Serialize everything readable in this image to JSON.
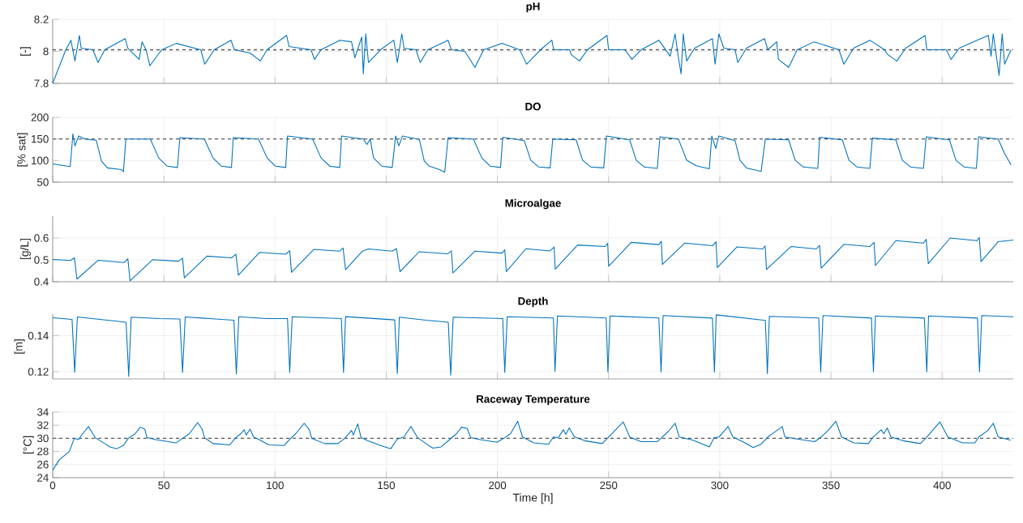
{
  "chart_data": [
    {
      "type": "line",
      "title": "pH",
      "ylabel": "[-]",
      "color": "#0072bd",
      "xlim": [
        0,
        432
      ],
      "xticks": [
        0,
        50,
        100,
        150,
        200,
        250,
        300,
        350,
        400
      ],
      "ylim": [
        7.8,
        8.2
      ],
      "yticks": [
        7.8,
        8,
        8.2
      ],
      "grid": true,
      "tick_labels": "y",
      "ref_lines": [
        {
          "axis": "y",
          "value": 8.01,
          "color": "#595959",
          "line_style": "dashed"
        }
      ],
      "x": [
        0,
        5.9,
        8.2,
        10,
        12,
        12.8,
        18.1,
        20.4,
        23.4,
        32.6,
        33.8,
        38.9,
        40.2,
        42,
        43.7,
        49,
        55.6,
        66.6,
        68.4,
        72.6,
        80.2,
        81.7,
        88.8,
        93.4,
        96.4,
        105.2,
        106.3,
        116.2,
        117.7,
        120.7,
        129.1,
        134.4,
        135.9,
        139,
        139.7,
        140.8,
        142,
        147.4,
        153.4,
        155,
        157,
        158,
        163.4,
        165.3,
        168.7,
        177.8,
        179.3,
        185.4,
        189.9,
        193.8,
        202.1,
        210,
        212.1,
        213.1,
        219.4,
        224.5,
        225.3,
        232.5,
        233.2,
        236.9,
        240.5,
        249.3,
        250,
        257.4,
        260.5,
        264.6,
        272.6,
        277.7,
        279.9,
        281.4,
        282.6,
        283.6,
        285.1,
        288.7,
        296.7,
        297.9,
        299.6,
        301.8,
        306.9,
        308.1,
        312,
        320.1,
        321.6,
        325.6,
        326.4,
        331,
        334.8,
        342.4,
        353.6,
        355.8,
        360.2,
        367.5,
        374.1,
        375.6,
        379.6,
        383.6,
        392.4,
        393.1,
        401.9,
        404,
        407.7,
        415.7,
        420.8,
        422,
        423,
        425.6,
        427,
        428.1,
        431
      ],
      "values": [
        7.8,
        8.01,
        8.07,
        7.94,
        8.1,
        8.02,
        8.01,
        7.93,
        8.01,
        8.08,
        8.02,
        7.95,
        8.06,
        8.01,
        7.91,
        8.01,
        8.05,
        8.01,
        7.92,
        8.01,
        8.07,
        8.01,
        7.99,
        7.94,
        8.01,
        8.1,
        8.03,
        8.01,
        7.95,
        8.01,
        8.07,
        8.06,
        7.96,
        8.09,
        7.86,
        8.11,
        7.93,
        8.01,
        8.07,
        7.93,
        8.11,
        8.02,
        8.01,
        7.93,
        8.01,
        8.07,
        8.01,
        8.0,
        7.9,
        8.01,
        8.05,
        8.01,
        7.95,
        7.92,
        8.01,
        8.07,
        8.01,
        8.01,
        7.98,
        7.94,
        8.01,
        8.1,
        8.01,
        8.01,
        7.95,
        8.01,
        8.07,
        7.97,
        8.11,
        7.96,
        7.86,
        8.11,
        7.94,
        8.02,
        8.08,
        7.92,
        8.11,
        8.02,
        8.01,
        7.93,
        8.02,
        8.08,
        8.01,
        8.06,
        7.95,
        7.9,
        8.01,
        8.06,
        8.01,
        7.92,
        8.02,
        8.07,
        8.01,
        7.98,
        7.94,
        8.02,
        8.1,
        8.01,
        8.01,
        7.95,
        8.02,
        8.07,
        8.1,
        7.97,
        8.11,
        7.85,
        8.11,
        7.92,
        8.01
      ]
    },
    {
      "type": "line",
      "title": "DO",
      "ylabel": "[% sat]",
      "color": "#0072bd",
      "xlim": [
        0,
        432
      ],
      "xticks": [
        0,
        50,
        100,
        150,
        200,
        250,
        300,
        350,
        400
      ],
      "ylim": [
        50,
        200
      ],
      "yticks": [
        50,
        100,
        150,
        200
      ],
      "grid": true,
      "tick_labels": "y",
      "ref_lines": [
        {
          "axis": "y",
          "value": 150,
          "color": "#595959",
          "line_style": "dashed"
        }
      ],
      "x": [
        0,
        7.9,
        9.1,
        10,
        11.7,
        14.4,
        19.6,
        21.9,
        24.6,
        31,
        31.8,
        32.9,
        43.9,
        47.7,
        51.5,
        56.1,
        57.2,
        68.2,
        72.1,
        75.9,
        80.4,
        81.2,
        92.6,
        96.4,
        100.2,
        104.8,
        105.6,
        116.9,
        120.7,
        124.6,
        129.1,
        129.9,
        139.8,
        141.3,
        142.8,
        144.3,
        148.1,
        152.7,
        154.2,
        155.7,
        157.3,
        164.9,
        167.1,
        169.4,
        174,
        176.3,
        177.8,
        189.2,
        193,
        196.8,
        201.4,
        202.4,
        212.1,
        215,
        218.6,
        223.7,
        224.9,
        235.4,
        238.3,
        242,
        247.8,
        249,
        259.5,
        262.4,
        266.1,
        271.9,
        273.1,
        281.4,
        285.1,
        289.4,
        295.3,
        296.4,
        298.2,
        299.6,
        306.9,
        309.1,
        312,
        318.6,
        320.5,
        331,
        333.9,
        337.6,
        344.1,
        344.9,
        355.1,
        358.1,
        361.7,
        367.5,
        368.6,
        379.2,
        382.1,
        385.8,
        391.6,
        392.8,
        403.3,
        406.2,
        409.9,
        415.4,
        416.4,
        425.2,
        428.1,
        431
      ],
      "values": [
        92,
        86,
        162,
        134,
        157,
        150,
        147,
        99,
        83,
        79,
        74,
        150,
        150,
        106,
        87,
        84,
        153,
        150,
        106,
        87,
        84,
        153,
        150,
        106,
        87,
        84,
        157,
        150,
        106,
        87,
        84,
        157,
        150,
        137,
        150,
        106,
        87,
        84,
        157,
        134,
        157,
        149,
        99,
        87,
        79,
        73,
        153,
        150,
        106,
        87,
        84,
        154,
        146,
        101,
        85,
        83,
        150,
        148,
        101,
        85,
        83,
        157,
        148,
        101,
        85,
        82,
        155,
        150,
        101,
        88,
        81,
        157,
        128,
        157,
        146,
        101,
        83,
        75,
        150,
        148,
        101,
        85,
        82,
        154,
        148,
        101,
        85,
        82,
        152,
        148,
        101,
        85,
        82,
        155,
        148,
        101,
        85,
        82,
        155,
        150,
        116,
        90
      ]
    },
    {
      "type": "line",
      "title": "Microalgae",
      "ylabel": "[g/L]",
      "color": "#0072bd",
      "xlim": [
        0,
        432
      ],
      "xticks": [
        0,
        50,
        100,
        150,
        200,
        250,
        300,
        350,
        400
      ],
      "ylim": [
        0.4,
        0.7
      ],
      "yticks": [
        0.4,
        0.5,
        0.6
      ],
      "grid": true,
      "tick_labels": "y",
      "x": [
        0,
        8,
        9.8,
        10.9,
        20.4,
        32.2,
        33.8,
        34.8,
        45,
        56.6,
        58.4,
        59.2,
        69.4,
        80.4,
        82.4,
        83.5,
        93,
        104.8,
        106.6,
        107.4,
        117.4,
        129,
        130.6,
        131.7,
        139.3,
        142,
        152.7,
        154.6,
        156.2,
        164.8,
        177.8,
        179.3,
        180,
        189.9,
        202,
        203.3,
        204,
        212.8,
        223.7,
        225.5,
        226,
        236.1,
        248.5,
        249.6,
        250,
        260.2,
        272.6,
        273.7,
        274.2,
        284.3,
        296.9,
        298.3,
        298.9,
        307.7,
        319.3,
        320.4,
        321,
        332,
        343.4,
        344.9,
        345.6,
        355.8,
        367.5,
        369.4,
        370,
        379.2,
        391.6,
        392.8,
        393.8,
        403.6,
        415.7,
        416.7,
        417.5,
        425.2,
        432
      ],
      "values": [
        0.502,
        0.497,
        0.509,
        0.412,
        0.498,
        0.488,
        0.505,
        0.404,
        0.501,
        0.494,
        0.508,
        0.418,
        0.517,
        0.509,
        0.526,
        0.43,
        0.534,
        0.526,
        0.542,
        0.443,
        0.548,
        0.54,
        0.554,
        0.455,
        0.54,
        0.55,
        0.54,
        0.552,
        0.446,
        0.537,
        0.528,
        0.541,
        0.44,
        0.54,
        0.531,
        0.546,
        0.446,
        0.551,
        0.541,
        0.559,
        0.458,
        0.568,
        0.561,
        0.576,
        0.471,
        0.58,
        0.57,
        0.585,
        0.479,
        0.577,
        0.565,
        0.583,
        0.465,
        0.559,
        0.55,
        0.564,
        0.456,
        0.561,
        0.55,
        0.566,
        0.462,
        0.571,
        0.561,
        0.58,
        0.474,
        0.588,
        0.577,
        0.594,
        0.483,
        0.6,
        0.588,
        0.603,
        0.492,
        0.583,
        0.591
      ]
    },
    {
      "type": "line",
      "title": "Depth",
      "ylabel": "[m]",
      "color": "#0072bd",
      "xlim": [
        0,
        432
      ],
      "xticks": [
        0,
        50,
        100,
        150,
        200,
        250,
        300,
        350,
        400
      ],
      "ylim": [
        0.116,
        0.152
      ],
      "yticks": [
        0.12,
        0.14
      ],
      "grid": true,
      "tick_labels": "y",
      "x": [
        0,
        8.7,
        9.9,
        11.1,
        33,
        34.2,
        35.3,
        47.7,
        57.2,
        58.4,
        59.6,
        81.5,
        82.6,
        83.7,
        96.4,
        105.6,
        106.6,
        107.7,
        129.8,
        130.8,
        131.7,
        153.8,
        155,
        155.9,
        167.9,
        177.9,
        179,
        180.1,
        202.4,
        203.3,
        204.4,
        225.2,
        225.9,
        227,
        248.9,
        249.7,
        250.7,
        272.6,
        273.6,
        274.5,
        296.7,
        297.6,
        298.4,
        320.5,
        321.4,
        322.3,
        344.5,
        345.4,
        346.4,
        368.2,
        369.1,
        370,
        392,
        393.1,
        393.9,
        415.9,
        416.8,
        417.8,
        432
      ],
      "values": [
        0.15,
        0.1491,
        0.1196,
        0.1504,
        0.1475,
        0.1174,
        0.1503,
        0.1495,
        0.1493,
        0.1196,
        0.1504,
        0.1486,
        0.1187,
        0.1505,
        0.1495,
        0.1495,
        0.1196,
        0.1505,
        0.1495,
        0.1196,
        0.1506,
        0.1488,
        0.1189,
        0.1503,
        0.1486,
        0.1475,
        0.118,
        0.1503,
        0.1495,
        0.1196,
        0.1505,
        0.1499,
        0.1202,
        0.151,
        0.1499,
        0.1198,
        0.151,
        0.1499,
        0.1198,
        0.1512,
        0.1498,
        0.1198,
        0.1516,
        0.1485,
        0.1189,
        0.1508,
        0.1499,
        0.1198,
        0.1512,
        0.1498,
        0.12,
        0.151,
        0.1498,
        0.12,
        0.151,
        0.1498,
        0.12,
        0.1512,
        0.1505
      ]
    },
    {
      "type": "line",
      "title": "Raceway Temperature",
      "ylabel": "[°C]",
      "xlabel": "Time [h]",
      "color": "#0072bd",
      "xlim": [
        0,
        432
      ],
      "xticks": [
        0,
        50,
        100,
        150,
        200,
        250,
        300,
        350,
        400
      ],
      "ylim": [
        24,
        34
      ],
      "yticks": [
        24,
        26,
        28,
        30,
        32,
        34
      ],
      "grid": true,
      "ref_lines": [
        {
          "axis": "y",
          "value": 30,
          "color": "#595959",
          "line_style": "dashed"
        }
      ],
      "x": [
        0,
        2.9,
        7.5,
        9.7,
        11.6,
        13.5,
        16.1,
        19.1,
        23.4,
        25.7,
        28.7,
        31.8,
        34,
        37.1,
        39.4,
        41.4,
        42.4,
        46.3,
        55.4,
        58.4,
        61.4,
        65.2,
        67.2,
        68.3,
        72.1,
        79.7,
        82,
        84.6,
        86.1,
        87,
        88.8,
        90.3,
        93.4,
        97.1,
        104,
        107,
        109.3,
        113.1,
        115.4,
        116.5,
        122.3,
        128.3,
        131.4,
        134.4,
        135.2,
        137.2,
        138.7,
        142.1,
        147.4,
        152,
        155,
        158,
        161.1,
        164.1,
        167.9,
        170.9,
        174.7,
        178.5,
        181.6,
        183.9,
        186.4,
        188,
        192.2,
        199.8,
        202.9,
        205.9,
        209.1,
        211.3,
        216.4,
        223,
        225.2,
        227.4,
        229.6,
        230.8,
        232.3,
        234.7,
        239.8,
        247.1,
        250,
        256.6,
        259.5,
        264.6,
        271.9,
        274.1,
        277,
        279.9,
        281.8,
        288,
        295.3,
        297.5,
        299.6,
        303.7,
        305.9,
        311.4,
        315,
        318.6,
        321.6,
        324.5,
        328.1,
        329.3,
        334.7,
        342.7,
        345.6,
        349,
        352.2,
        354.8,
        360.2,
        366.8,
        369,
        372.6,
        373.8,
        375.3,
        377,
        382.9,
        390.2,
        393.1,
        399,
        402.6,
        409.2,
        414.7,
        416.5,
        420.6,
        423,
        425.2,
        430.8
      ],
      "values": [
        25.1,
        26.7,
        28.0,
        30.0,
        29.8,
        30.7,
        31.8,
        30.1,
        29.2,
        28.7,
        28.4,
        28.9,
        30.0,
        30.7,
        31.7,
        31.4,
        30.1,
        29.8,
        29.3,
        30.0,
        30.7,
        32.4,
        31.4,
        30.1,
        29.2,
        29.0,
        30.0,
        30.7,
        31.3,
        30.5,
        31.4,
        30.2,
        29.7,
        29.0,
        28.9,
        30.0,
        30.7,
        32.3,
        31.3,
        30.0,
        29.2,
        29.2,
        30.0,
        31.2,
        30.5,
        32.2,
        30.1,
        29.6,
        28.9,
        28.4,
        29.9,
        30.2,
        31.8,
        30.1,
        29.2,
        28.5,
        28.7,
        29.8,
        30.7,
        31.7,
        31.5,
        30.1,
        29.8,
        29.4,
        30.0,
        30.7,
        32.6,
        30.2,
        29.3,
        29.1,
        30.2,
        30.1,
        31.3,
        30.6,
        31.6,
        30.2,
        29.6,
        29.2,
        30.2,
        32.5,
        30.2,
        29.5,
        29.5,
        30.2,
        31.1,
        32.3,
        30.2,
        29.7,
        28.7,
        30.1,
        30.2,
        31.8,
        30.2,
        29.3,
        28.6,
        29.1,
        30.2,
        30.9,
        31.8,
        30.2,
        29.9,
        29.5,
        30.2,
        31.3,
        32.6,
        30.2,
        29.3,
        29.2,
        30.2,
        31.3,
        30.7,
        31.6,
        30.2,
        29.6,
        29.2,
        30.2,
        32.5,
        30.2,
        29.3,
        29.3,
        30.2,
        31.2,
        32.3,
        30.2,
        29.7
      ]
    }
  ]
}
